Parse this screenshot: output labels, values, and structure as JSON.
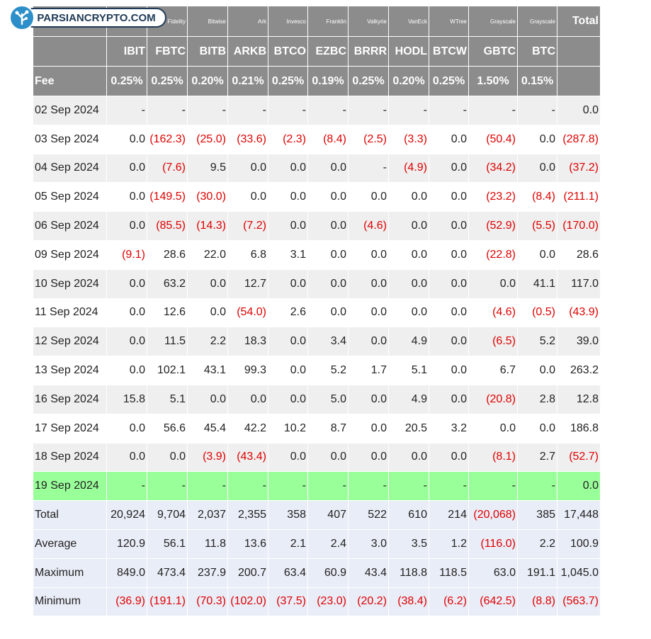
{
  "watermark": "PARSIANCRYPTO.COM",
  "table": {
    "issuers": [
      "Fidelity",
      "Bitwise",
      "Ark",
      "Invesco",
      "Franklin",
      "Valkyrie",
      "VanEck",
      "WTree",
      "Grayscale",
      "Grayscale",
      "Total"
    ],
    "tickers": [
      "IBIT",
      "FBTC",
      "BITB",
      "ARKB",
      "BTCO",
      "EZBC",
      "BRRR",
      "HODL",
      "BTCW",
      "GBTC",
      "BTC"
    ],
    "fee_label": "Fee",
    "fees": [
      "0.25%",
      "0.25%",
      "0.20%",
      "0.21%",
      "0.25%",
      "0.19%",
      "0.25%",
      "0.20%",
      "0.25%",
      "1.50%",
      "0.15%"
    ],
    "rows": [
      [
        "02 Sep 2024",
        "-",
        "-",
        "-",
        "-",
        "-",
        "-",
        "-",
        "-",
        "-",
        "-",
        "-",
        "0.0"
      ],
      [
        "03 Sep 2024",
        "0.0",
        "(162.3)",
        "(25.0)",
        "(33.6)",
        "(2.3)",
        "(8.4)",
        "(2.5)",
        "(3.3)",
        "0.0",
        "(50.4)",
        "0.0",
        "(287.8)"
      ],
      [
        "04 Sep 2024",
        "0.0",
        "(7.6)",
        "9.5",
        "0.0",
        "0.0",
        "0.0",
        "-",
        "(4.9)",
        "0.0",
        "(34.2)",
        "0.0",
        "(37.2)"
      ],
      [
        "05 Sep 2024",
        "0.0",
        "(149.5)",
        "(30.0)",
        "0.0",
        "0.0",
        "0.0",
        "0.0",
        "0.0",
        "0.0",
        "(23.2)",
        "(8.4)",
        "(211.1)"
      ],
      [
        "06 Sep 2024",
        "0.0",
        "(85.5)",
        "(14.3)",
        "(7.2)",
        "0.0",
        "0.0",
        "(4.6)",
        "0.0",
        "0.0",
        "(52.9)",
        "(5.5)",
        "(170.0)"
      ],
      [
        "09 Sep 2024",
        "(9.1)",
        "28.6",
        "22.0",
        "6.8",
        "3.1",
        "0.0",
        "0.0",
        "0.0",
        "0.0",
        "(22.8)",
        "0.0",
        "28.6"
      ],
      [
        "10 Sep 2024",
        "0.0",
        "63.2",
        "0.0",
        "12.7",
        "0.0",
        "0.0",
        "0.0",
        "0.0",
        "0.0",
        "0.0",
        "41.1",
        "117.0"
      ],
      [
        "11 Sep 2024",
        "0.0",
        "12.6",
        "0.0",
        "(54.0)",
        "2.6",
        "0.0",
        "0.0",
        "0.0",
        "0.0",
        "(4.6)",
        "(0.5)",
        "(43.9)"
      ],
      [
        "12 Sep 2024",
        "0.0",
        "11.5",
        "2.2",
        "18.3",
        "0.0",
        "3.4",
        "0.0",
        "4.9",
        "0.0",
        "(6.5)",
        "5.2",
        "39.0"
      ],
      [
        "13 Sep 2024",
        "0.0",
        "102.1",
        "43.1",
        "99.3",
        "0.0",
        "5.2",
        "1.7",
        "5.1",
        "0.0",
        "6.7",
        "0.0",
        "263.2"
      ],
      [
        "16 Sep 2024",
        "15.8",
        "5.1",
        "0.0",
        "0.0",
        "0.0",
        "5.0",
        "0.0",
        "4.9",
        "0.0",
        "(20.8)",
        "2.8",
        "12.8"
      ],
      [
        "17 Sep 2024",
        "0.0",
        "56.6",
        "45.4",
        "42.2",
        "10.2",
        "8.7",
        "0.0",
        "20.5",
        "3.2",
        "0.0",
        "0.0",
        "186.8"
      ],
      [
        "18 Sep 2024",
        "0.0",
        "0.0",
        "(3.9)",
        "(43.4)",
        "0.0",
        "0.0",
        "0.0",
        "0.0",
        "0.0",
        "(8.1)",
        "2.7",
        "(52.7)"
      ],
      [
        "19 Sep 2024",
        "-",
        "-",
        "-",
        "-",
        "-",
        "-",
        "-",
        "-",
        "-",
        "-",
        "-",
        "0.0"
      ]
    ],
    "stats": [
      [
        "Total",
        "20,924",
        "9,704",
        "2,037",
        "2,355",
        "358",
        "407",
        "522",
        "610",
        "214",
        "(20,068)",
        "385",
        "17,448"
      ],
      [
        "Average",
        "120.9",
        "56.1",
        "11.8",
        "13.6",
        "2.1",
        "2.4",
        "3.0",
        "3.5",
        "1.2",
        "(116.0)",
        "2.2",
        "100.9"
      ],
      [
        "Maximum",
        "849.0",
        "473.4",
        "237.9",
        "200.7",
        "63.4",
        "60.9",
        "43.4",
        "118.8",
        "118.5",
        "63.0",
        "191.1",
        "1,045.0"
      ],
      [
        "Minimum",
        "(36.9)",
        "(191.1)",
        "(70.3)",
        "(102.0)",
        "(37.5)",
        "(23.0)",
        "(20.2)",
        "(38.4)",
        "(6.2)",
        "(642.5)",
        "(8.8)",
        "(563.7)"
      ]
    ]
  }
}
